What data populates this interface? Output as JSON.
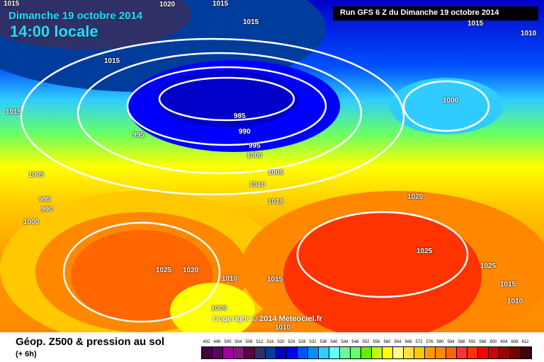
{
  "header": {
    "date": "Dimanche 19 octobre 2014",
    "time": "14:00 locale",
    "run": "Run GFS 6 Z du Dimanche 19 octobre 2014"
  },
  "copyright": "Copyright © 2014 Meteociel.fr",
  "footer": {
    "title": "Géop. Z500 & pression au sol",
    "subtitle": "(+ 6h)"
  },
  "scale": {
    "values": [
      "492",
      "496",
      "500",
      "504",
      "508",
      "512",
      "516",
      "520",
      "524",
      "528",
      "532",
      "536",
      "540",
      "544",
      "548",
      "552",
      "556",
      "560",
      "564",
      "568",
      "572",
      "576",
      "580",
      "584",
      "588",
      "592",
      "596",
      "600",
      "604",
      "608",
      "612"
    ],
    "colors": [
      "#400040",
      "#600060",
      "#a000a0",
      "#801880",
      "#600040",
      "#303068",
      "#003c9c",
      "#0000c8",
      "#0000ff",
      "#0050ff",
      "#0090ff",
      "#30ccff",
      "#66ffff",
      "#66ff99",
      "#66ff66",
      "#66ee00",
      "#bbff11",
      "#ffff00",
      "#ffff88",
      "#ffe040",
      "#ffc800",
      "#ff9900",
      "#ff8800",
      "#ff6600",
      "#ff3333",
      "#ff3300",
      "#ff0000",
      "#cc0000",
      "#990000",
      "#770000",
      "#440000"
    ]
  },
  "isobars": [
    "1015",
    "1020",
    "1015",
    "1015",
    "1015",
    "1010",
    "1015",
    "1015",
    "1000",
    "985",
    "990",
    "995",
    "995",
    "1000",
    "1005",
    "1005",
    "1010",
    "995",
    "990",
    "1015",
    "1000",
    "1020",
    "1025",
    "1025",
    "1020",
    "1010",
    "1015",
    "1025",
    "1015",
    "1010",
    "1005",
    "1010"
  ]
}
